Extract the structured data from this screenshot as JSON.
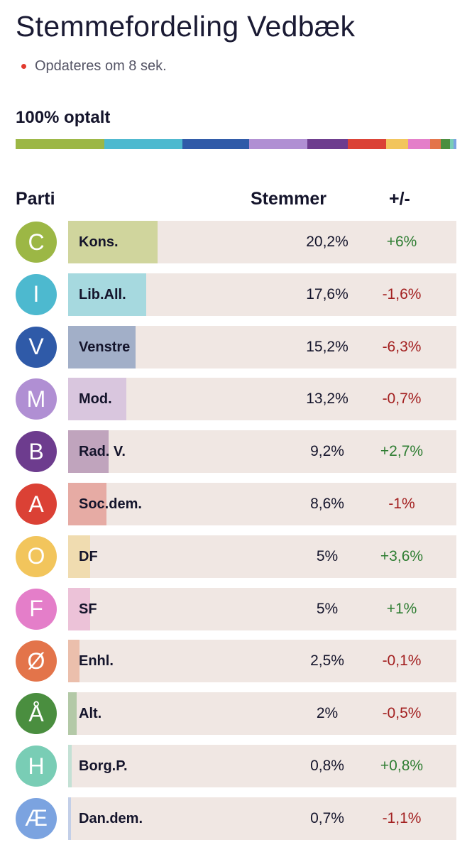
{
  "header": {
    "title": "Stemmefordeling Vedbæk",
    "update_text": "Opdateres om 8 sek.",
    "counted_text": "100% optalt"
  },
  "table": {
    "col_party": "Parti",
    "col_votes": "Stemmer",
    "col_change": "+/-"
  },
  "parties": [
    {
      "letter": "C",
      "name": "Kons.",
      "votes": "20,2%",
      "votes_value": 20.2,
      "change": "+6%",
      "color": "#9cb745",
      "fill": "#d0d59d"
    },
    {
      "letter": "I",
      "name": "Lib.All.",
      "votes": "17,6%",
      "votes_value": 17.6,
      "change": "-1,6%",
      "color": "#4db9cf",
      "fill": "#a6d9df"
    },
    {
      "letter": "V",
      "name": "Venstre",
      "votes": "15,2%",
      "votes_value": 15.2,
      "change": "-6,3%",
      "color": "#2f5aa8",
      "fill": "#a2afc8"
    },
    {
      "letter": "M",
      "name": "Mod.",
      "votes": "13,2%",
      "votes_value": 13.2,
      "change": "-0,7%",
      "color": "#b08fd3",
      "fill": "#d9c6de"
    },
    {
      "letter": "B",
      "name": "Rad. V.",
      "votes": "9,2%",
      "votes_value": 9.2,
      "change": "+2,7%",
      "color": "#6d3c8e",
      "fill": "#c0a4bd"
    },
    {
      "letter": "A",
      "name": "Soc.dem.",
      "votes": "8,6%",
      "votes_value": 8.6,
      "change": "-1%",
      "color": "#db4135",
      "fill": "#e6aba4"
    },
    {
      "letter": "O",
      "name": "DF",
      "votes": "5%",
      "votes_value": 5.0,
      "change": "+3,6%",
      "color": "#f2c55c",
      "fill": "#f0dcb0"
    },
    {
      "letter": "F",
      "name": "SF",
      "votes": "5%",
      "votes_value": 5.0,
      "change": "+1%",
      "color": "#e47ec9",
      "fill": "#ecc2d8"
    },
    {
      "letter": "Ø",
      "name": "Enhl.",
      "votes": "2,5%",
      "votes_value": 2.5,
      "change": "-0,1%",
      "color": "#e3744a",
      "fill": "#ebbfac"
    },
    {
      "letter": "Å",
      "name": "Alt.",
      "votes": "2%",
      "votes_value": 2.0,
      "change": "-0,5%",
      "color": "#4a8e3f",
      "fill": "#b3c9a7"
    },
    {
      "letter": "H",
      "name": "Borg.P.",
      "votes": "0,8%",
      "votes_value": 0.8,
      "change": "+0,8%",
      "color": "#79cdb5",
      "fill": "#c4e1d5"
    },
    {
      "letter": "Æ",
      "name": "Dan.dem.",
      "votes": "0,7%",
      "votes_value": 0.7,
      "change": "-1,1%",
      "color": "#7ba3e0",
      "fill": "#c3cfe8"
    }
  ]
}
